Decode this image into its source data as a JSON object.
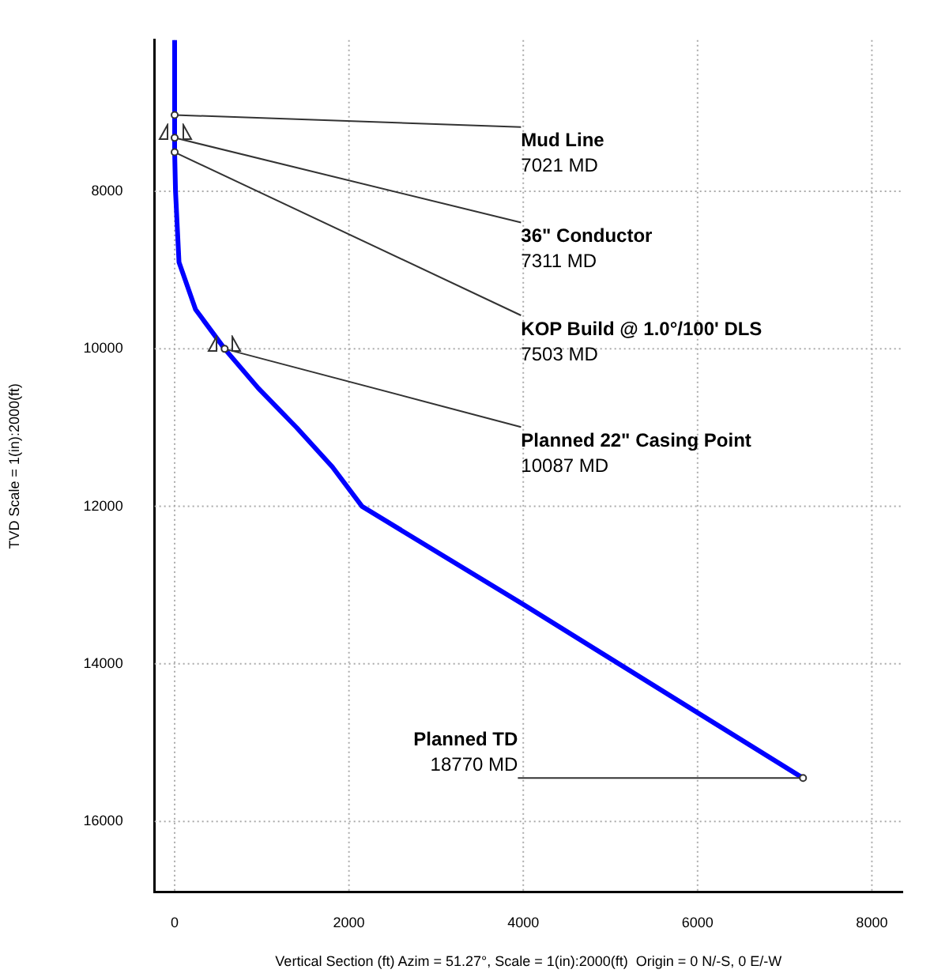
{
  "chart_data": {
    "type": "line",
    "xlabel": "Vertical Section (ft) Azim = 51.27°, Scale = 1(in):2000(ft)  Origin = 0 N/-S, 0 E/-W",
    "ylabel": "TVD Scale = 1(in):2000(ft)",
    "xlim": [
      -230,
      8350
    ],
    "ylim": [
      16900,
      6080
    ],
    "xticks": [
      0,
      2000,
      4000,
      6000,
      8000
    ],
    "yticks": [
      8000,
      10000,
      12000,
      14000,
      16000
    ],
    "grid": true,
    "legend": false,
    "marker": "none",
    "series": [
      {
        "color": "#0000ff",
        "x": [
          0,
          0,
          10,
          50,
          240,
          574,
          960,
          1400,
          1810,
          2150,
          4000,
          6000,
          7210
        ],
        "values": [
          6080,
          7503,
          8000,
          8900,
          9500,
          10000,
          10500,
          11000,
          11500,
          12000,
          13245,
          14620,
          15450
        ]
      }
    ],
    "annotations": [
      {
        "text": "Mud Line\n7021 MD",
        "x": 0,
        "y": 7030
      },
      {
        "text": "36\" Conductor\n7311 MD",
        "x": 0,
        "y": 7320
      },
      {
        "text": "KOP Build @ 1.0°/100' DLS\n7503 MD",
        "x": 0,
        "y": 7503
      },
      {
        "text": "Planned 22\" Casing Point\n10087 MD",
        "x": 574,
        "y": 10000
      },
      {
        "text": "Planned TD\n18770 MD",
        "x": 7210,
        "y": 15450
      }
    ]
  }
}
